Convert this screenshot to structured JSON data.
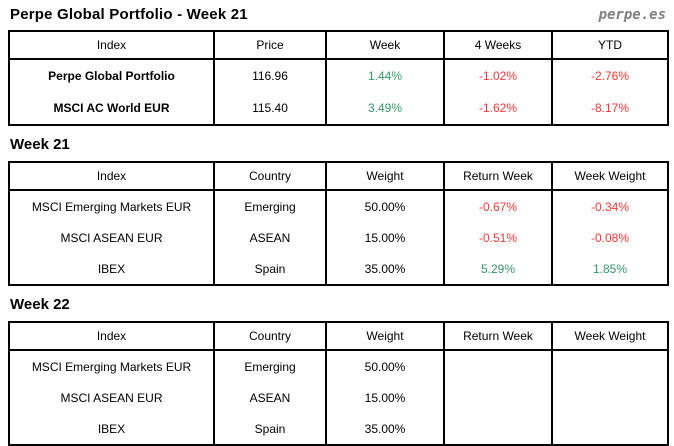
{
  "page": {
    "title": "Perpe Global Portfolio - Week 21",
    "brand": "perpe.es"
  },
  "colors": {
    "positive": "#339966",
    "negative": "#ff3333",
    "brand_gray": "#7f7f7f",
    "border": "#000000"
  },
  "summary_table": {
    "headers": [
      "Index",
      "Price",
      "Week",
      "4 Weeks",
      "YTD"
    ],
    "rows": [
      {
        "index": "Perpe Global Portfolio",
        "price": "116.96",
        "week": "1.44%",
        "four_weeks": "-1.02%",
        "ytd": "-2.76%"
      },
      {
        "index": "MSCI AC World EUR",
        "price": "115.40",
        "week": "3.49%",
        "four_weeks": "-1.62%",
        "ytd": "-8.17%"
      }
    ]
  },
  "week21": {
    "heading": "Week 21",
    "headers": [
      "Index",
      "Country",
      "Weight",
      "Return Week",
      "Week Weight"
    ],
    "rows": [
      {
        "index": "MSCI Emerging Markets EUR",
        "country": "Emerging",
        "weight": "50.00%",
        "return_week": "-0.67%",
        "week_weight": "-0.34%"
      },
      {
        "index": "MSCI ASEAN EUR",
        "country": "ASEAN",
        "weight": "15.00%",
        "return_week": "-0.51%",
        "week_weight": "-0.08%"
      },
      {
        "index": "IBEX",
        "country": "Spain",
        "weight": "35.00%",
        "return_week": "5.29%",
        "week_weight": "1.85%"
      }
    ]
  },
  "week22": {
    "heading": "Week 22",
    "headers": [
      "Index",
      "Country",
      "Weight",
      "Return Week",
      "Week Weight"
    ],
    "rows": [
      {
        "index": "MSCI Emerging Markets EUR",
        "country": "Emerging",
        "weight": "50.00%",
        "return_week": "",
        "week_weight": ""
      },
      {
        "index": "MSCI ASEAN EUR",
        "country": "ASEAN",
        "weight": "15.00%",
        "return_week": "",
        "week_weight": ""
      },
      {
        "index": "IBEX",
        "country": "Spain",
        "weight": "35.00%",
        "return_week": "",
        "week_weight": ""
      }
    ]
  }
}
